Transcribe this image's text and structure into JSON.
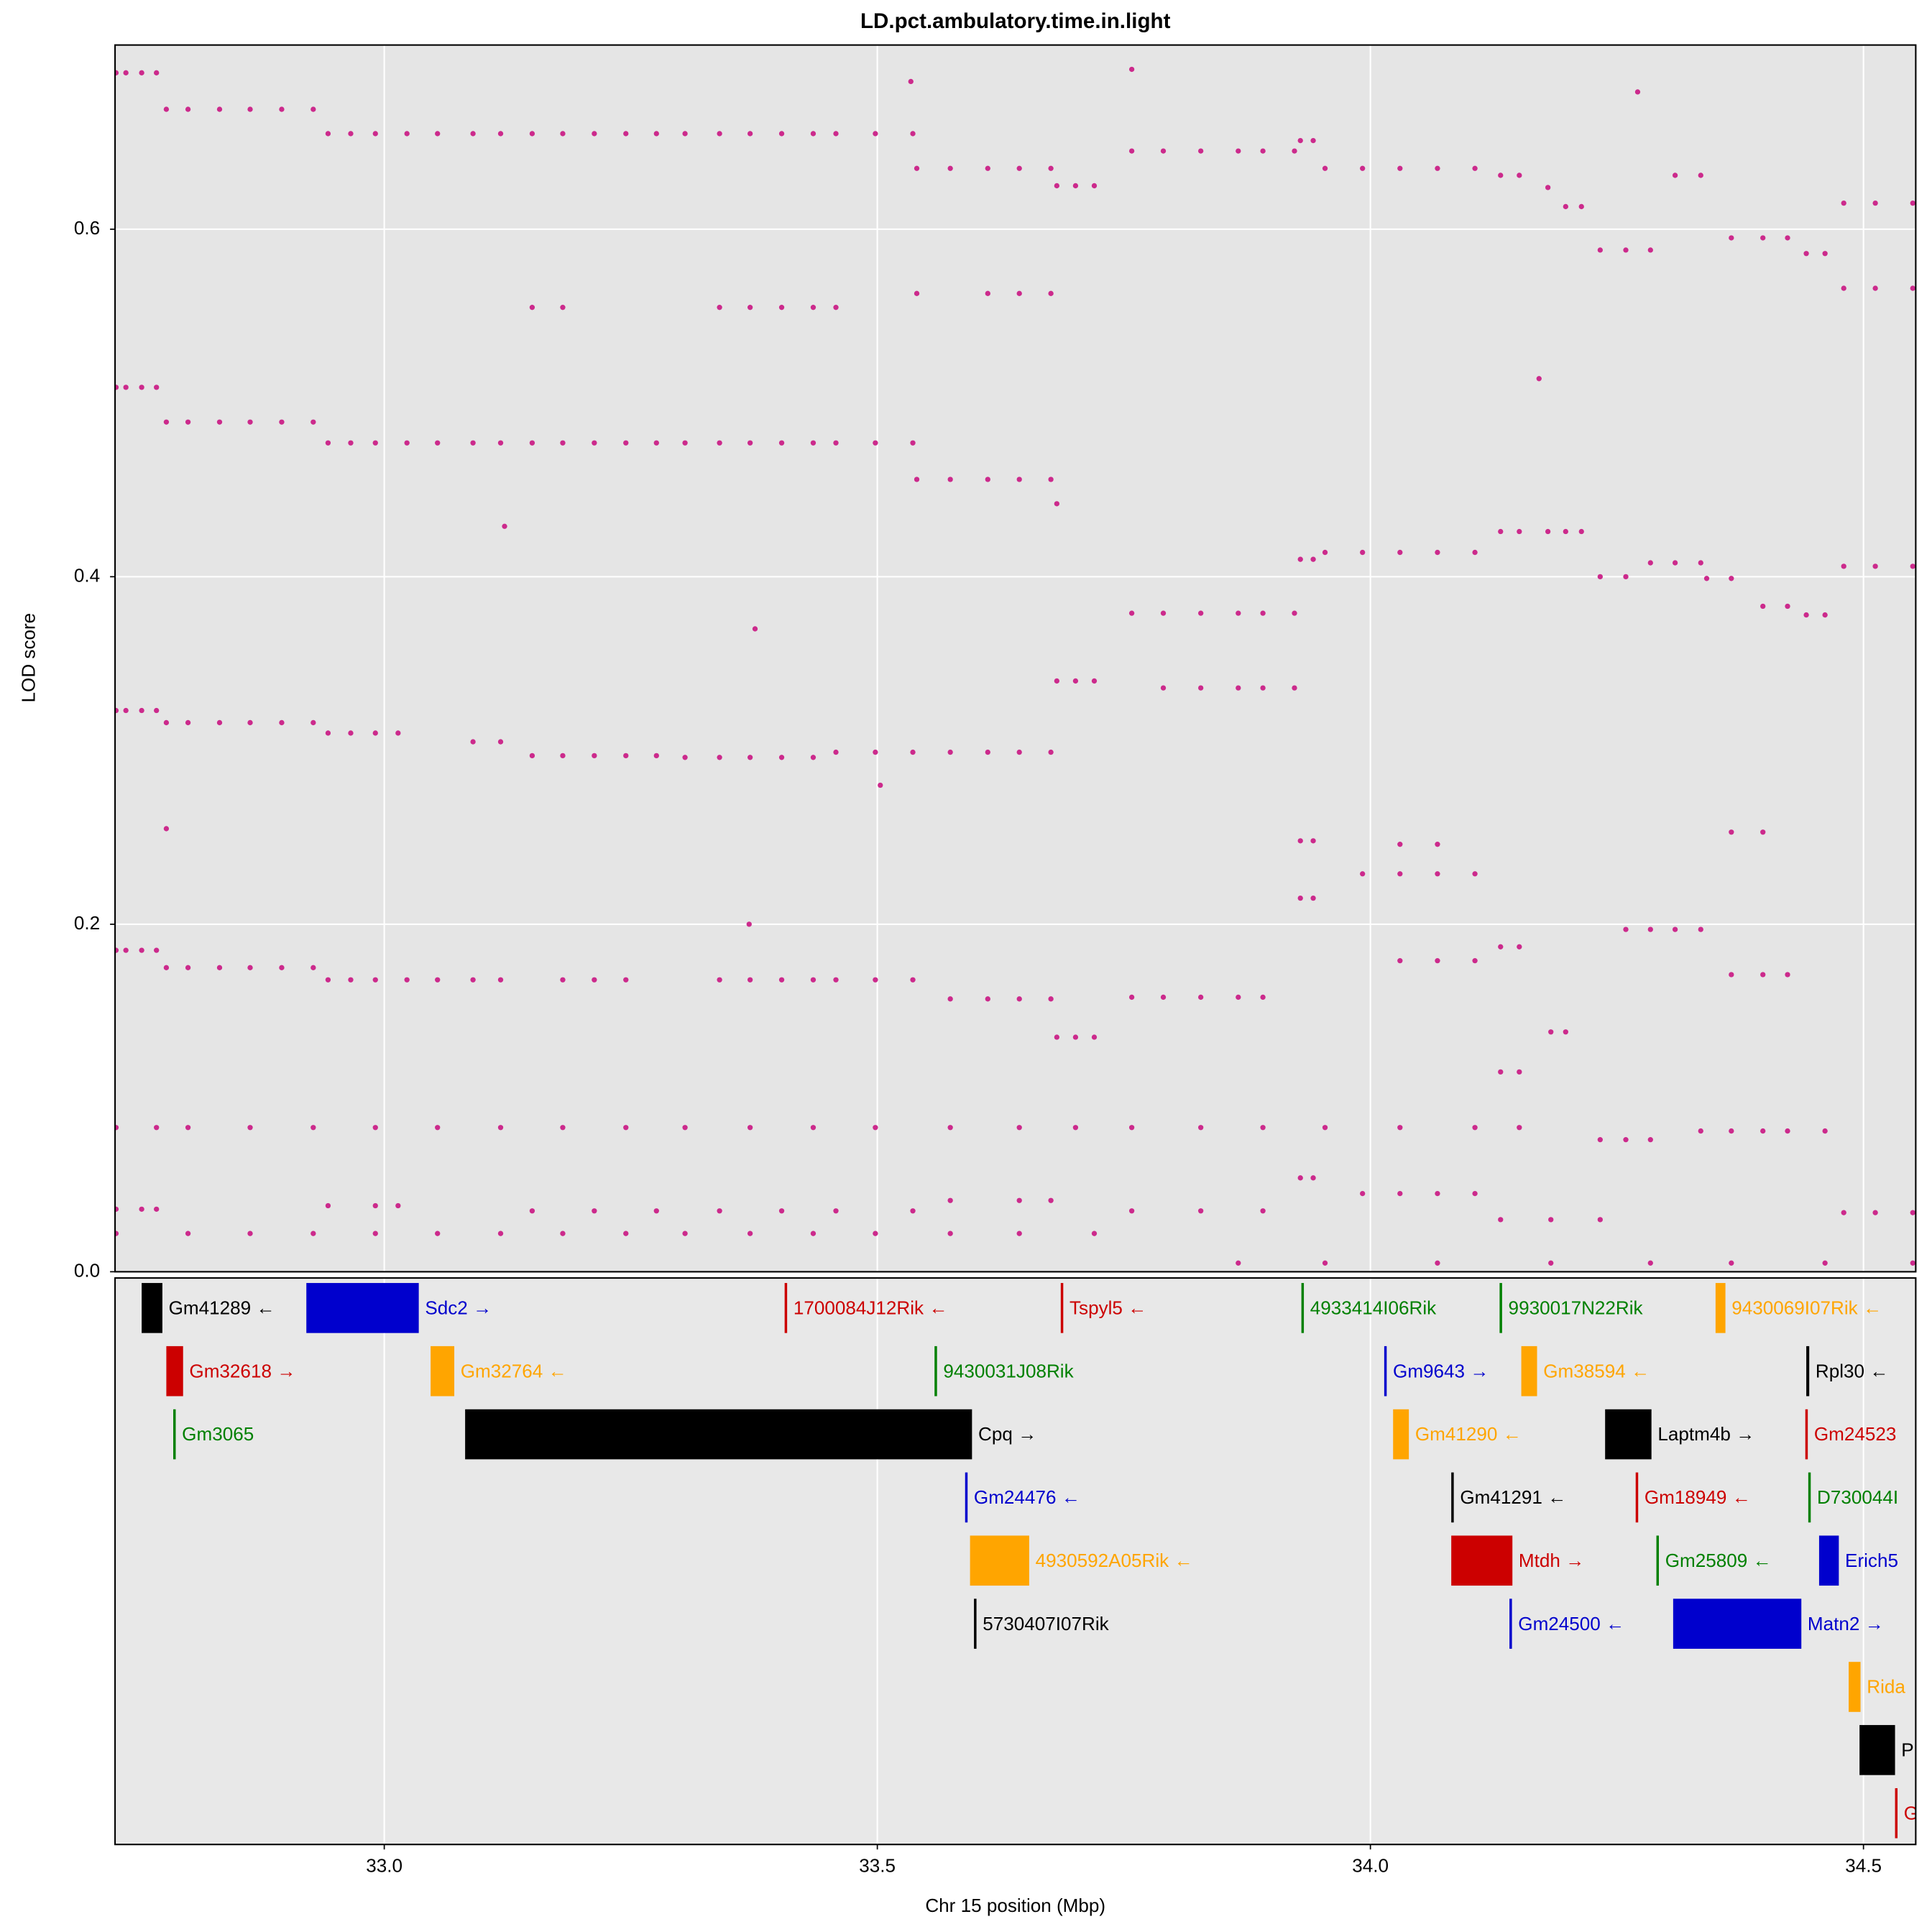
{
  "chart_data": {
    "type": "scatter",
    "title": "LD.pct.ambulatory.time.in.light",
    "x_label": "Chr 15 position (Mbp)",
    "y_label": "LOD score",
    "color": "#cc2a8c",
    "grid": true,
    "xlim": [
      32.727,
      34.553
    ],
    "ylim": [
      0,
      0.706
    ],
    "xticks": [
      {
        "value": 33.0,
        "label": "33.0"
      },
      {
        "value": 33.5,
        "label": "33.5"
      },
      {
        "value": 34.0,
        "label": "34.0"
      },
      {
        "value": 34.5,
        "label": "34.5"
      }
    ],
    "yticks": [
      {
        "value": 0,
        "label": "0.0"
      },
      0.2,
      0.4,
      0.6
    ],
    "x": [
      32.728,
      32.738,
      32.754,
      32.769,
      32.779,
      32.801,
      32.833,
      32.864,
      32.896,
      32.928,
      32.943,
      32.966,
      32.991,
      33.023,
      33.054,
      33.09,
      33.118,
      33.15,
      33.181,
      33.213,
      33.245,
      33.276,
      33.305,
      33.34,
      33.371,
      33.403,
      33.435,
      33.458,
      33.498,
      33.536,
      33.54,
      33.574,
      33.612,
      33.644,
      33.676,
      33.682,
      33.701,
      33.72,
      33.758,
      33.79,
      33.828,
      33.866,
      33.891,
      33.923,
      33.929,
      33.942,
      33.954,
      33.992,
      34.03,
      34.068,
      34.106,
      34.132,
      34.151,
      34.18,
      34.198,
      34.214,
      34.233,
      34.259,
      34.284,
      34.309,
      34.335,
      34.366,
      34.398,
      34.423,
      34.442,
      34.461,
      34.48,
      34.512,
      34.55,
      34.48,
      34.512,
      34.55,
      33.15,
      33.181,
      33.34,
      33.371,
      33.403,
      33.435,
      33.458,
      33.54,
      33.612,
      33.644,
      33.676,
      32.728,
      32.738,
      32.754,
      32.769,
      32.779,
      32.801,
      32.833,
      32.864,
      32.896,
      32.928,
      32.943,
      32.966,
      32.991,
      33.023,
      33.054,
      33.09,
      33.118,
      33.15,
      33.181,
      33.213,
      33.245,
      33.276,
      33.305,
      33.34,
      33.371,
      33.403,
      33.435,
      33.458,
      33.498,
      33.536,
      33.54,
      33.574,
      33.612,
      33.644,
      33.676,
      33.682,
      33.929,
      33.942,
      33.954,
      33.992,
      34.03,
      34.068,
      34.106,
      34.132,
      34.151,
      34.18,
      34.198,
      34.214,
      34.233,
      34.259,
      34.284,
      34.309,
      34.335,
      34.341,
      34.366,
      34.398,
      34.423,
      34.442,
      34.461,
      34.48,
      34.512,
      34.55,
      33.758,
      33.79,
      33.828,
      33.866,
      33.891,
      33.923,
      33.682,
      33.701,
      33.72,
      32.728,
      32.738,
      32.754,
      32.769,
      32.779,
      32.801,
      32.833,
      32.864,
      32.896,
      32.928,
      32.943,
      32.966,
      32.991,
      33.014,
      33.09,
      33.118,
      33.15,
      33.181,
      33.213,
      33.245,
      33.276,
      33.305,
      33.34,
      33.371,
      33.403,
      33.435,
      33.458,
      33.498,
      33.536,
      33.574,
      33.612,
      33.644,
      33.676,
      33.79,
      33.828,
      33.866,
      33.891,
      33.923,
      33.929,
      33.942,
      34.03,
      34.068,
      33.992,
      34.03,
      34.068,
      34.106,
      34.366,
      34.398,
      32.728,
      32.738,
      32.754,
      32.769,
      32.779,
      32.801,
      32.833,
      32.864,
      32.896,
      32.928,
      32.943,
      32.966,
      32.991,
      33.023,
      33.054,
      33.09,
      33.118,
      33.181,
      33.213,
      33.245,
      33.34,
      33.371,
      33.403,
      33.435,
      33.458,
      33.498,
      33.536,
      33.574,
      33.612,
      33.644,
      33.676,
      33.682,
      33.701,
      33.72,
      33.758,
      33.79,
      33.828,
      33.866,
      33.891,
      32.728,
      32.769,
      32.801,
      32.864,
      32.928,
      32.991,
      33.054,
      33.118,
      33.181,
      33.245,
      33.305,
      33.371,
      33.435,
      33.498,
      33.574,
      33.644,
      33.701,
      33.758,
      33.828,
      33.891,
      33.954,
      34.03,
      34.106,
      34.151,
      32.728,
      32.754,
      32.769,
      32.943,
      32.991,
      33.014,
      33.15,
      33.213,
      33.276,
      33.34,
      33.403,
      33.458,
      33.536,
      33.574,
      33.644,
      33.676,
      32.728,
      32.801,
      32.864,
      32.928,
      32.991,
      33.054,
      33.118,
      33.181,
      33.245,
      33.305,
      33.371,
      33.435,
      33.498,
      33.574,
      33.644,
      33.72,
      33.929,
      33.942,
      34.132,
      34.151,
      34.183,
      34.198,
      33.758,
      33.828,
      33.891,
      33.929,
      33.942,
      33.992,
      34.03,
      34.068,
      34.106,
      34.132,
      34.183,
      34.233,
      34.233,
      34.259,
      34.284,
      34.335,
      34.366,
      34.398,
      34.423,
      34.461,
      34.48,
      34.512,
      34.55,
      34.03,
      34.068,
      34.106,
      34.132,
      34.151,
      34.259,
      34.284,
      34.309,
      34.335,
      34.366,
      34.398,
      34.423,
      33.866,
      33.954,
      34.068,
      34.183,
      34.284,
      34.366,
      34.461,
      34.55,
      33.122,
      33.376,
      33.503,
      33.758,
      33.534,
      34.271,
      32.779,
      33.37,
      34.171
    ],
    "values": [
      0.69,
      0.69,
      0.69,
      0.69,
      0.669,
      0.669,
      0.669,
      0.669,
      0.669,
      0.669,
      0.655,
      0.655,
      0.655,
      0.655,
      0.655,
      0.655,
      0.655,
      0.655,
      0.655,
      0.655,
      0.655,
      0.655,
      0.655,
      0.655,
      0.655,
      0.655,
      0.655,
      0.655,
      0.655,
      0.655,
      0.635,
      0.635,
      0.635,
      0.635,
      0.635,
      0.625,
      0.625,
      0.625,
      0.645,
      0.645,
      0.645,
      0.645,
      0.645,
      0.645,
      0.651,
      0.651,
      0.635,
      0.635,
      0.635,
      0.635,
      0.635,
      0.631,
      0.631,
      0.624,
      0.613,
      0.613,
      0.588,
      0.588,
      0.588,
      0.631,
      0.631,
      0.595,
      0.595,
      0.595,
      0.586,
      0.586,
      0.615,
      0.615,
      0.615,
      0.566,
      0.566,
      0.566,
      0.555,
      0.555,
      0.555,
      0.555,
      0.555,
      0.555,
      0.555,
      0.563,
      0.563,
      0.563,
      0.563,
      0.509,
      0.509,
      0.509,
      0.509,
      0.489,
      0.489,
      0.489,
      0.489,
      0.489,
      0.489,
      0.477,
      0.477,
      0.477,
      0.477,
      0.477,
      0.477,
      0.477,
      0.477,
      0.477,
      0.477,
      0.477,
      0.477,
      0.477,
      0.477,
      0.477,
      0.477,
      0.477,
      0.477,
      0.477,
      0.477,
      0.456,
      0.456,
      0.456,
      0.456,
      0.456,
      0.442,
      0.41,
      0.41,
      0.414,
      0.414,
      0.414,
      0.414,
      0.414,
      0.426,
      0.426,
      0.426,
      0.426,
      0.426,
      0.4,
      0.4,
      0.408,
      0.408,
      0.408,
      0.399,
      0.399,
      0.383,
      0.383,
      0.378,
      0.378,
      0.406,
      0.406,
      0.406,
      0.379,
      0.379,
      0.379,
      0.379,
      0.379,
      0.379,
      0.34,
      0.34,
      0.34,
      0.323,
      0.323,
      0.323,
      0.323,
      0.316,
      0.316,
      0.316,
      0.316,
      0.316,
      0.316,
      0.31,
      0.31,
      0.31,
      0.31,
      0.305,
      0.305,
      0.297,
      0.297,
      0.297,
      0.297,
      0.297,
      0.296,
      0.296,
      0.296,
      0.296,
      0.296,
      0.299,
      0.299,
      0.299,
      0.299,
      0.299,
      0.299,
      0.299,
      0.336,
      0.336,
      0.336,
      0.336,
      0.336,
      0.248,
      0.248,
      0.246,
      0.246,
      0.229,
      0.229,
      0.229,
      0.229,
      0.253,
      0.253,
      0.185,
      0.185,
      0.185,
      0.185,
      0.175,
      0.175,
      0.175,
      0.175,
      0.175,
      0.175,
      0.168,
      0.168,
      0.168,
      0.168,
      0.168,
      0.168,
      0.168,
      0.168,
      0.168,
      0.168,
      0.168,
      0.168,
      0.168,
      0.168,
      0.168,
      0.168,
      0.168,
      0.157,
      0.157,
      0.157,
      0.157,
      0.135,
      0.135,
      0.135,
      0.158,
      0.158,
      0.158,
      0.158,
      0.158,
      0.083,
      0.083,
      0.083,
      0.083,
      0.083,
      0.083,
      0.083,
      0.083,
      0.083,
      0.083,
      0.083,
      0.083,
      0.083,
      0.083,
      0.083,
      0.083,
      0.083,
      0.083,
      0.083,
      0.083,
      0.083,
      0.083,
      0.083,
      0.083,
      0.036,
      0.036,
      0.036,
      0.038,
      0.038,
      0.038,
      0.035,
      0.035,
      0.035,
      0.035,
      0.035,
      0.035,
      0.035,
      0.041,
      0.041,
      0.041,
      0.022,
      0.022,
      0.022,
      0.022,
      0.022,
      0.022,
      0.022,
      0.022,
      0.022,
      0.022,
      0.022,
      0.022,
      0.022,
      0.022,
      0.022,
      0.022,
      0.215,
      0.215,
      0.115,
      0.115,
      0.138,
      0.138,
      0.035,
      0.035,
      0.035,
      0.054,
      0.054,
      0.045,
      0.045,
      0.045,
      0.045,
      0.03,
      0.03,
      0.03,
      0.076,
      0.076,
      0.076,
      0.081,
      0.081,
      0.081,
      0.081,
      0.081,
      0.034,
      0.034,
      0.034,
      0.179,
      0.179,
      0.179,
      0.187,
      0.187,
      0.197,
      0.197,
      0.197,
      0.197,
      0.171,
      0.171,
      0.171,
      0.005,
      0.005,
      0.005,
      0.005,
      0.005,
      0.005,
      0.005,
      0.005,
      0.429,
      0.37,
      0.28,
      0.692,
      0.685,
      0.679,
      0.255,
      0.2,
      0.514
    ],
    "genes": [
      [
        {
          "label": "Gm41289 ←",
          "start": 32.754,
          "end": 32.775,
          "color": "#000000"
        },
        {
          "label": "Sdc2 →",
          "start": 32.921,
          "end": 33.035,
          "color": "#0000cd"
        },
        {
          "label": "1700084J12Rik ←",
          "start": 33.406,
          "end": 33.408,
          "color": "#cc0000"
        },
        {
          "label": "Tspyl5 ←",
          "start": 33.686,
          "end": 33.688,
          "color": "#cc0000"
        },
        {
          "label": "4933414I06Rik",
          "start": 33.93,
          "end": 33.932,
          "color": "#008000"
        },
        {
          "label": "9930017N22Rik",
          "start": 34.131,
          "end": 34.133,
          "color": "#008000"
        },
        {
          "label": "9430069I07Rik ←",
          "start": 34.35,
          "end": 34.36,
          "color": "#ffa500"
        }
      ],
      [
        {
          "label": "Gm32618 →",
          "start": 32.779,
          "end": 32.796,
          "color": "#cc0000"
        },
        {
          "label": "Gm32764 ←",
          "start": 33.047,
          "end": 33.071,
          "color": "#ffa500"
        },
        {
          "label": "9430031J08Rik",
          "start": 33.558,
          "end": 33.56,
          "color": "#008000"
        },
        {
          "label": "Gm9643 →",
          "start": 34.014,
          "end": 34.016,
          "color": "#0000cd"
        },
        {
          "label": "Gm38594 ←",
          "start": 34.153,
          "end": 34.169,
          "color": "#ffa500"
        },
        {
          "label": "Rpl30 ←",
          "start": 34.442,
          "end": 34.445,
          "color": "#000000"
        }
      ],
      [
        {
          "label": "Gm3065",
          "start": 32.786,
          "end": 32.788,
          "color": "#008000"
        },
        {
          "label": "Cpq →",
          "start": 33.082,
          "end": 33.596,
          "color": "#000000"
        },
        {
          "label": "Gm41290 ←",
          "start": 34.023,
          "end": 34.039,
          "color": "#ffa500"
        },
        {
          "label": "Laptm4b →",
          "start": 34.238,
          "end": 34.285,
          "color": "#000000"
        },
        {
          "label": "Gm24523",
          "start": 34.441,
          "end": 34.443,
          "color": "#cc0000"
        }
      ],
      [
        {
          "label": "Gm24476 ←",
          "start": 33.589,
          "end": 33.591,
          "color": "#0000cd"
        },
        {
          "label": "Gm41291 ←",
          "start": 34.082,
          "end": 34.084,
          "color": "#000000"
        },
        {
          "label": "Gm18949 ←",
          "start": 34.269,
          "end": 34.271,
          "color": "#cc0000"
        },
        {
          "label": "D730044I",
          "start": 34.444,
          "end": 34.446,
          "color": "#008000"
        }
      ],
      [
        {
          "label": "4930592A05Rik ←",
          "start": 33.594,
          "end": 33.654,
          "color": "#ffa500"
        },
        {
          "label": "Mtdh →",
          "start": 34.082,
          "end": 34.144,
          "color": "#cc0000"
        },
        {
          "label": "Gm25809 ←",
          "start": 34.29,
          "end": 34.292,
          "color": "#008000"
        },
        {
          "label": "Erich5",
          "start": 34.455,
          "end": 34.475,
          "color": "#0000cd"
        }
      ],
      [
        {
          "label": "5730407I07Rik",
          "start": 33.598,
          "end": 33.6,
          "color": "#000000"
        },
        {
          "label": "Gm24500 ←",
          "start": 34.141,
          "end": 34.143,
          "color": "#0000cd"
        },
        {
          "label": "Matn2 →",
          "start": 34.307,
          "end": 34.437,
          "color": "#0000cd"
        }
      ],
      [
        {
          "label": "Rida",
          "start": 34.485,
          "end": 34.497,
          "color": "#ffa500"
        }
      ],
      [
        {
          "label": "P",
          "start": 34.496,
          "end": 34.532,
          "color": "#000000"
        }
      ],
      [
        {
          "label": "G",
          "start": 34.532,
          "end": 34.534,
          "color": "#cc0000"
        }
      ]
    ]
  }
}
